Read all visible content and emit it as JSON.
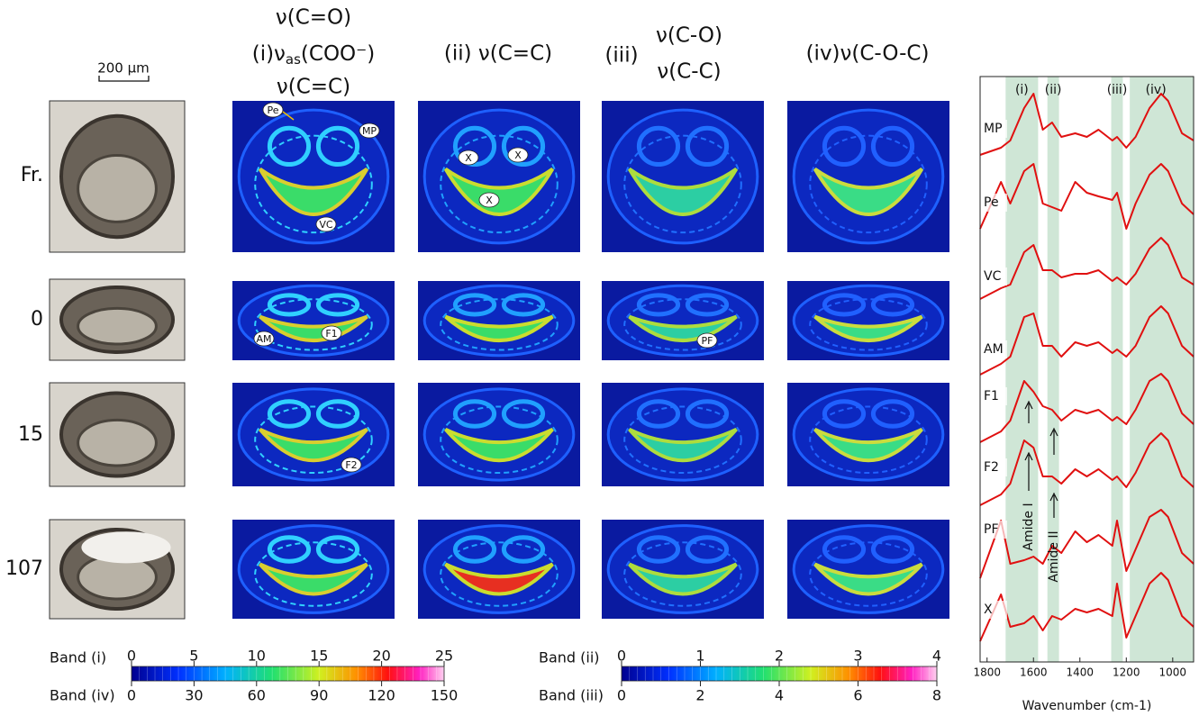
{
  "scale_bar": "200 μm",
  "columns": [
    {
      "lines": [
        "ν(C=O)",
        "(i)ν",
        "as",
        "(COO⁻)",
        "ν(C=C)"
      ]
    },
    {
      "lines": [
        "(ii) ν(C=C)"
      ]
    },
    {
      "lines": [
        "(iii)",
        "ν(C-O)",
        "ν(C-C)"
      ]
    },
    {
      "lines": [
        "(iv)ν(C-O-C)"
      ]
    }
  ],
  "rows": [
    "Fr.",
    "0",
    "15",
    "107"
  ],
  "annotations": [
    "Pe",
    "MP",
    "VC",
    "X",
    "X",
    "X",
    "AM",
    "F1",
    "PF",
    "F2"
  ],
  "colorbars": [
    {
      "top_label": "Band (i)",
      "top_ticks": [
        0,
        5,
        10,
        15,
        20,
        25
      ],
      "bottom_label": "Band (iv)",
      "bottom_ticks": [
        0,
        30,
        60,
        90,
        120,
        150
      ]
    },
    {
      "top_label": "Band (ii)",
      "top_ticks": [
        0,
        1,
        2,
        3,
        4
      ],
      "bottom_label": "Band (iii)",
      "bottom_ticks": [
        0,
        2,
        4,
        6,
        8
      ]
    }
  ],
  "spectrum": {
    "band_labels": [
      "(i)",
      "(ii)",
      "(iii)",
      "(iv)"
    ],
    "bands": [
      [
        1720,
        1580
      ],
      [
        1540,
        1490
      ],
      [
        1265,
        1215
      ],
      [
        1185,
        910
      ]
    ],
    "xlim": [
      1830,
      910
    ],
    "xticks": [
      1800,
      1600,
      1400,
      1200,
      1000
    ],
    "xlabel": "Wavenumber (cm-1)",
    "amide_labels": [
      "Amide I",
      "Amide II"
    ],
    "x": [
      1830,
      1740,
      1700,
      1640,
      1600,
      1560,
      1520,
      1480,
      1420,
      1370,
      1320,
      1260,
      1240,
      1200,
      1160,
      1100,
      1050,
      1020,
      960,
      910
    ],
    "traces": [
      {
        "name": "MP",
        "values": [
          0.1,
          0.2,
          0.3,
          0.75,
          0.95,
          0.45,
          0.55,
          0.35,
          0.4,
          0.35,
          0.45,
          0.3,
          0.35,
          0.2,
          0.35,
          0.75,
          0.95,
          0.85,
          0.4,
          0.3
        ]
      },
      {
        "name": "Pe",
        "values": [
          0.1,
          0.75,
          0.45,
          0.9,
          1.0,
          0.45,
          0.4,
          0.35,
          0.75,
          0.6,
          0.55,
          0.5,
          0.6,
          0.1,
          0.45,
          0.85,
          1.0,
          0.9,
          0.45,
          0.3
        ]
      },
      {
        "name": "VC",
        "values": [
          0.1,
          0.25,
          0.3,
          0.75,
          0.85,
          0.5,
          0.5,
          0.4,
          0.45,
          0.45,
          0.5,
          0.35,
          0.4,
          0.3,
          0.45,
          0.8,
          0.95,
          0.85,
          0.4,
          0.3
        ]
      },
      {
        "name": "AM",
        "values": [
          0.05,
          0.2,
          0.3,
          0.85,
          0.9,
          0.45,
          0.45,
          0.3,
          0.5,
          0.45,
          0.5,
          0.35,
          0.4,
          0.3,
          0.45,
          0.85,
          1.0,
          0.9,
          0.45,
          0.3
        ]
      },
      {
        "name": "F1",
        "values": [
          0.05,
          0.2,
          0.35,
          0.9,
          0.75,
          0.55,
          0.5,
          0.35,
          0.5,
          0.45,
          0.5,
          0.35,
          0.4,
          0.3,
          0.5,
          0.9,
          1.0,
          0.9,
          0.45,
          0.3
        ]
      },
      {
        "name": "F2",
        "values": [
          0.05,
          0.2,
          0.35,
          0.95,
          0.85,
          0.45,
          0.45,
          0.35,
          0.55,
          0.45,
          0.55,
          0.4,
          0.45,
          0.3,
          0.5,
          0.9,
          1.05,
          0.95,
          0.45,
          0.3
        ]
      },
      {
        "name": "PF",
        "values": [
          0.1,
          0.9,
          0.3,
          0.35,
          0.4,
          0.3,
          0.55,
          0.45,
          0.75,
          0.6,
          0.7,
          0.55,
          0.9,
          0.2,
          0.5,
          0.95,
          1.05,
          0.95,
          0.45,
          0.3
        ]
      },
      {
        "name": "X",
        "values": [
          0.1,
          0.75,
          0.3,
          0.35,
          0.45,
          0.25,
          0.45,
          0.4,
          0.55,
          0.5,
          0.55,
          0.45,
          0.9,
          0.15,
          0.45,
          0.9,
          1.05,
          0.95,
          0.45,
          0.3
        ]
      }
    ]
  }
}
